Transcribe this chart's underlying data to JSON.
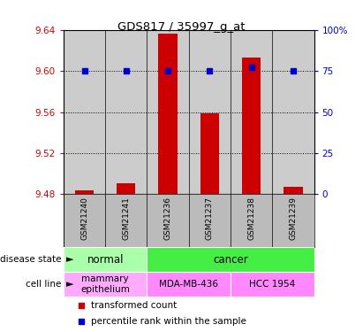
{
  "title": "GDS817 / 35997_g_at",
  "samples": [
    "GSM21240",
    "GSM21241",
    "GSM21236",
    "GSM21237",
    "GSM21238",
    "GSM21239"
  ],
  "transformed_counts": [
    9.484,
    9.491,
    9.636,
    9.559,
    9.613,
    9.487
  ],
  "percentile_ranks": [
    75,
    75,
    75,
    75,
    77,
    75
  ],
  "ylim": [
    9.48,
    9.64
  ],
  "yticks_left": [
    9.48,
    9.52,
    9.56,
    9.6,
    9.64
  ],
  "yticks_right": [
    0,
    25,
    50,
    75,
    100
  ],
  "disease_state": [
    {
      "label": "normal",
      "cols": [
        0,
        1
      ],
      "color": "#AAFFAA"
    },
    {
      "label": "cancer",
      "cols": [
        2,
        3,
        4,
        5
      ],
      "color": "#44EE44"
    }
  ],
  "cell_line": [
    {
      "label": "mammary\nepithelium",
      "cols": [
        0,
        1
      ],
      "color": "#FFAAFF"
    },
    {
      "label": "MDA-MB-436",
      "cols": [
        2,
        3
      ],
      "color": "#FF88FF"
    },
    {
      "label": "HCC 1954",
      "cols": [
        4,
        5
      ],
      "color": "#FF88FF"
    }
  ],
  "bar_color": "#CC0000",
  "dot_color": "#0000CC",
  "left_axis_color": "#CC0000",
  "right_axis_color": "#0000CC",
  "tick_label_bg": "#BBBBBB",
  "plot_bg": "#FFFFFF"
}
